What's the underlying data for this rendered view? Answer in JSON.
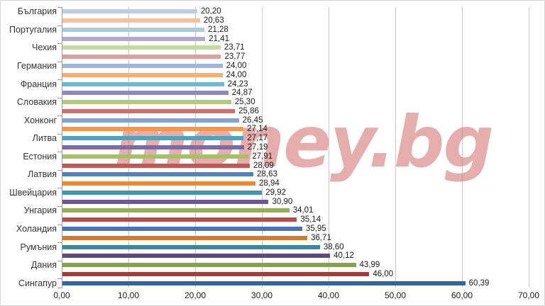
{
  "watermark": {
    "text": "money.bg",
    "color": "#d26969"
  },
  "styles": {
    "gridline_color": "#c8c8c8",
    "axis_color": "#9b9b9b",
    "category_label_color": "#333333",
    "value_label_color": "#1a1a1a",
    "background": "#ffffff",
    "frame_border": "#d4d4d4"
  },
  "chart_data": {
    "type": "bar",
    "orientation": "horizontal",
    "title": "",
    "xlabel": "",
    "ylabel": "",
    "xlim": [
      0,
      70
    ],
    "x_tick_step": 10,
    "x_tick_values": [
      0,
      10,
      20,
      30,
      40,
      50,
      60,
      70
    ],
    "x_tick_labels": [
      "0,00",
      "10,00",
      "20,00",
      "30,00",
      "40,00",
      "50,00",
      "60,00",
      "70,00"
    ],
    "grid": true,
    "legend": false,
    "value_labels_shown": true,
    "decimal_separator": ",",
    "category_label_interval": 2,
    "bars": [
      {
        "label": "България",
        "value": 20.2,
        "value_label": "20,20",
        "color": "#bccde6"
      },
      {
        "label": "",
        "value": 20.63,
        "value_label": "20,63",
        "color": "#f8c09c"
      },
      {
        "label": "Португалия",
        "value": 21.28,
        "value_label": "21,28",
        "color": "#a9cbdd"
      },
      {
        "label": "",
        "value": 21.41,
        "value_label": "21,41",
        "color": "#b1a8cb"
      },
      {
        "label": "Чехия",
        "value": 23.71,
        "value_label": "23,71",
        "color": "#c6d9a0"
      },
      {
        "label": "",
        "value": 23.77,
        "value_label": "23,77",
        "color": "#db9f9d"
      },
      {
        "label": "Германия",
        "value": 24.0,
        "value_label": "24,00",
        "color": "#9fb6dc"
      },
      {
        "label": "",
        "value": 24.0,
        "value_label": "24,00",
        "color": "#f9ae71"
      },
      {
        "label": "Франция",
        "value": 24.23,
        "value_label": "24,23",
        "color": "#6fb9d0"
      },
      {
        "label": "",
        "value": 24.87,
        "value_label": "24,87",
        "color": "#9186c0"
      },
      {
        "label": "Словакия",
        "value": 25.3,
        "value_label": "25,30",
        "color": "#aecb7f"
      },
      {
        "label": "",
        "value": 25.86,
        "value_label": "25,86",
        "color": "#cd6f6c"
      },
      {
        "label": "Хонконг",
        "value": 26.45,
        "value_label": "26,45",
        "color": "#7fa3d4"
      },
      {
        "label": "",
        "value": 27.14,
        "value_label": "27,14",
        "color": "#f79646"
      },
      {
        "label": "Литва",
        "value": 27.17,
        "value_label": "27,17",
        "color": "#4aa6c0"
      },
      {
        "label": "",
        "value": 27.19,
        "value_label": "27,19",
        "color": "#7e6aa6"
      },
      {
        "label": "Естония",
        "value": 27.91,
        "value_label": "27,91",
        "color": "#a6c065"
      },
      {
        "label": "",
        "value": 28.09,
        "value_label": "28,09",
        "color": "#c55753"
      },
      {
        "label": "Латвия",
        "value": 28.63,
        "value_label": "28,63",
        "color": "#4f81bd"
      },
      {
        "label": "",
        "value": 28.94,
        "value_label": "28,94",
        "color": "#ed892f"
      },
      {
        "label": "Швейцария",
        "value": 29.92,
        "value_label": "29,92",
        "color": "#3f96ae"
      },
      {
        "label": "",
        "value": 30.9,
        "value_label": "30,90",
        "color": "#6f5699"
      },
      {
        "label": "Унгария",
        "value": 34.01,
        "value_label": "34,01",
        "color": "#95b054"
      },
      {
        "label": "",
        "value": 35.14,
        "value_label": "35,14",
        "color": "#bb4a46"
      },
      {
        "label": "Холандия",
        "value": 35.95,
        "value_label": "35,95",
        "color": "#4576b0"
      },
      {
        "label": "",
        "value": 36.71,
        "value_label": "36,71",
        "color": "#d4792e"
      },
      {
        "label": "Румъния",
        "value": 38.6,
        "value_label": "38,60",
        "color": "#38899e"
      },
      {
        "label": "",
        "value": 40.12,
        "value_label": "40,12",
        "color": "#5e4a7d"
      },
      {
        "label": "Дания",
        "value": 43.99,
        "value_label": "43,99",
        "color": "#84a24d"
      },
      {
        "label": "",
        "value": 46.0,
        "value_label": "46,00",
        "color": "#a23e3b"
      },
      {
        "label": "Сингапур",
        "value": 60.39,
        "value_label": "60,39",
        "color": "#33649e"
      }
    ]
  }
}
